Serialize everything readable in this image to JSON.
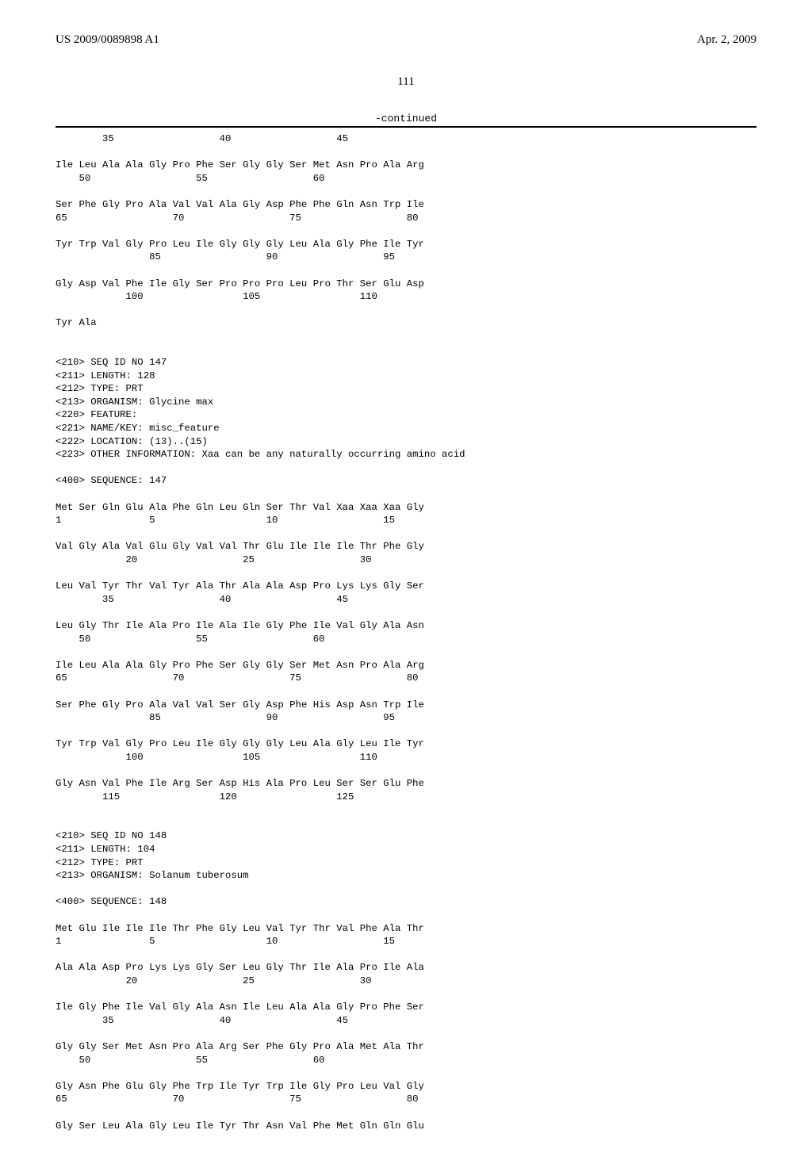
{
  "header": {
    "left": "US 2009/0089898 A1",
    "right": "Apr. 2, 2009"
  },
  "page_number": "111",
  "continued_label": "-continued",
  "sequence_text": "        35                  40                  45\n\nIle Leu Ala Ala Gly Pro Phe Ser Gly Gly Ser Met Asn Pro Ala Arg\n    50                  55                  60\n\nSer Phe Gly Pro Ala Val Val Ala Gly Asp Phe Phe Gln Asn Trp Ile\n65                  70                  75                  80\n\nTyr Trp Val Gly Pro Leu Ile Gly Gly Gly Leu Ala Gly Phe Ile Tyr\n                85                  90                  95\n\nGly Asp Val Phe Ile Gly Ser Pro Pro Pro Leu Pro Thr Ser Glu Asp\n            100                 105                 110\n\nTyr Ala\n\n\n<210> SEQ ID NO 147\n<211> LENGTH: 128\n<212> TYPE: PRT\n<213> ORGANISM: Glycine max\n<220> FEATURE:\n<221> NAME/KEY: misc_feature\n<222> LOCATION: (13)..(15)\n<223> OTHER INFORMATION: Xaa can be any naturally occurring amino acid\n\n<400> SEQUENCE: 147\n\nMet Ser Gln Glu Ala Phe Gln Leu Gln Ser Thr Val Xaa Xaa Xaa Gly\n1               5                   10                  15\n\nVal Gly Ala Val Glu Gly Val Val Thr Glu Ile Ile Ile Thr Phe Gly\n            20                  25                  30\n\nLeu Val Tyr Thr Val Tyr Ala Thr Ala Ala Asp Pro Lys Lys Gly Ser\n        35                  40                  45\n\nLeu Gly Thr Ile Ala Pro Ile Ala Ile Gly Phe Ile Val Gly Ala Asn\n    50                  55                  60\n\nIle Leu Ala Ala Gly Pro Phe Ser Gly Gly Ser Met Asn Pro Ala Arg\n65                  70                  75                  80\n\nSer Phe Gly Pro Ala Val Val Ser Gly Asp Phe His Asp Asn Trp Ile\n                85                  90                  95\n\nTyr Trp Val Gly Pro Leu Ile Gly Gly Gly Leu Ala Gly Leu Ile Tyr\n            100                 105                 110\n\nGly Asn Val Phe Ile Arg Ser Asp His Ala Pro Leu Ser Ser Glu Phe\n        115                 120                 125\n\n\n<210> SEQ ID NO 148\n<211> LENGTH: 104\n<212> TYPE: PRT\n<213> ORGANISM: Solanum tuberosum\n\n<400> SEQUENCE: 148\n\nMet Glu Ile Ile Ile Thr Phe Gly Leu Val Tyr Thr Val Phe Ala Thr\n1               5                   10                  15\n\nAla Ala Asp Pro Lys Lys Gly Ser Leu Gly Thr Ile Ala Pro Ile Ala\n            20                  25                  30\n\nIle Gly Phe Ile Val Gly Ala Asn Ile Leu Ala Ala Gly Pro Phe Ser\n        35                  40                  45\n\nGly Gly Ser Met Asn Pro Ala Arg Ser Phe Gly Pro Ala Met Ala Thr\n    50                  55                  60\n\nGly Asn Phe Glu Gly Phe Trp Ile Tyr Trp Ile Gly Pro Leu Val Gly\n65                  70                  75                  80\n\nGly Ser Leu Ala Gly Leu Ile Tyr Thr Asn Val Phe Met Gln Gln Glu"
}
